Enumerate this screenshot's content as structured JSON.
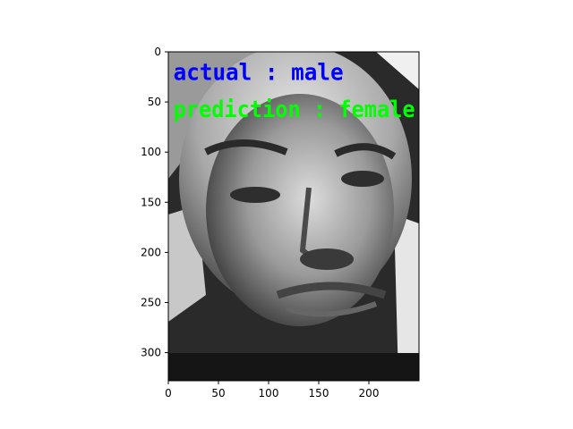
{
  "chart_data": {
    "type": "image",
    "title": "",
    "xlabel": "",
    "ylabel": "",
    "image_extent": {
      "width": 250,
      "height": 328
    },
    "xlim": [
      0,
      250
    ],
    "ylim": [
      328,
      0
    ],
    "x_ticks": [
      0,
      50,
      100,
      150,
      200
    ],
    "y_ticks": [
      0,
      50,
      100,
      150,
      200,
      250,
      300
    ],
    "colormap": "gray",
    "annotations": [
      {
        "text": "actual : male",
        "color": "#0000ff",
        "x": 5,
        "y": 28
      },
      {
        "text": "prediction : female",
        "color": "#00ff00",
        "x": 5,
        "y": 65
      }
    ]
  }
}
